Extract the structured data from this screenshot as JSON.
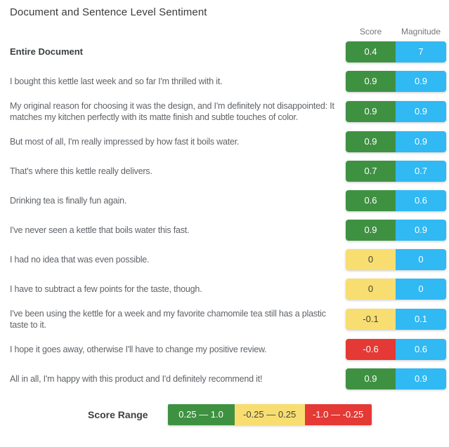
{
  "title": "Document and Sentence Level Sentiment",
  "columns": {
    "score": "Score",
    "magnitude": "Magnitude"
  },
  "colors": {
    "positive": "#3f9142",
    "neutral": "#f8de71",
    "negative": "#e53935",
    "magnitude": "#30b9f3"
  },
  "rows": [
    {
      "text": "Entire Document",
      "score": "0.4",
      "magnitude": "7",
      "tone": "positive"
    },
    {
      "text": "I bought this kettle last week and so far I'm thrilled with it.",
      "score": "0.9",
      "magnitude": "0.9",
      "tone": "positive"
    },
    {
      "text": "My original reason for choosing it was the design, and I'm definitely not disappointed: It matches my kitchen perfectly with its matte finish and subtle touches of color.",
      "score": "0.9",
      "magnitude": "0.9",
      "tone": "positive"
    },
    {
      "text": "But most of all, I'm really impressed by how fast it boils water.",
      "score": "0.9",
      "magnitude": "0.9",
      "tone": "positive"
    },
    {
      "text": "That's where this kettle really delivers.",
      "score": "0.7",
      "magnitude": "0.7",
      "tone": "positive"
    },
    {
      "text": "Drinking tea is finally fun again.",
      "score": "0.6",
      "magnitude": "0.6",
      "tone": "positive"
    },
    {
      "text": "I've never seen a kettle that boils water this fast.",
      "score": "0.9",
      "magnitude": "0.9",
      "tone": "positive"
    },
    {
      "text": "I had no idea that was even possible.",
      "score": "0",
      "magnitude": "0",
      "tone": "neutral"
    },
    {
      "text": "I have to subtract a few points for the taste, though.",
      "score": "0",
      "magnitude": "0",
      "tone": "neutral"
    },
    {
      "text": "I've been using the kettle for a week and my favorite chamomile tea still has a plastic taste to it.",
      "score": "-0.1",
      "magnitude": "0.1",
      "tone": "neutral"
    },
    {
      "text": "I hope it goes away, otherwise I'll have to change my positive review.",
      "score": "-0.6",
      "magnitude": "0.6",
      "tone": "negative"
    },
    {
      "text": "All in all, I'm happy with this product and I'd definitely recommend it!",
      "score": "0.9",
      "magnitude": "0.9",
      "tone": "positive"
    }
  ],
  "legend": {
    "label": "Score Range",
    "ranges": [
      {
        "label": "0.25 — 1.0",
        "tone": "positive"
      },
      {
        "label": "-0.25 — 0.25",
        "tone": "neutral"
      },
      {
        "label": "-1.0 — -0.25",
        "tone": "negative"
      }
    ]
  }
}
